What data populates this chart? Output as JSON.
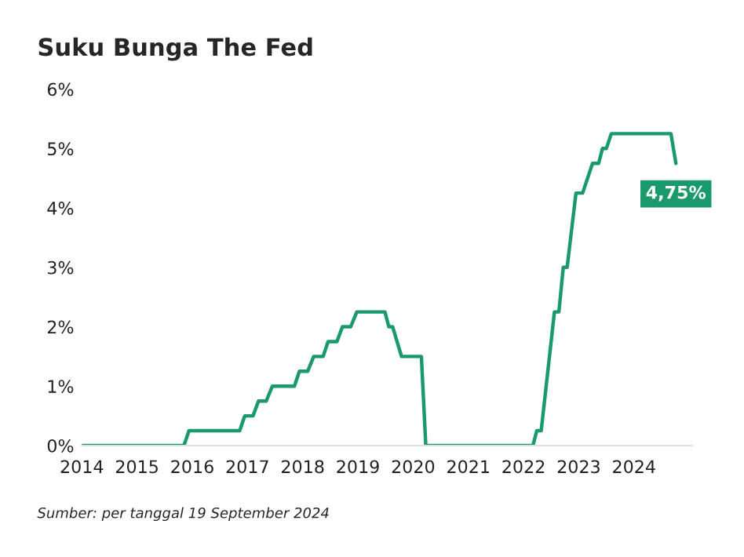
{
  "chart_data": {
    "type": "line",
    "title": "Suku Bunga The Fed",
    "x": [
      2014,
      2015.85,
      2015.94,
      2016.86,
      2016.95,
      2017.1,
      2017.2,
      2017.34,
      2017.45,
      2017.85,
      2017.94,
      2018.09,
      2018.2,
      2018.37,
      2018.46,
      2018.62,
      2018.72,
      2018.87,
      2018.98,
      2019.49,
      2019.56,
      2019.63,
      2019.79,
      2020.15,
      2020.23,
      2022.17,
      2022.24,
      2022.32,
      2022.56,
      2022.64,
      2022.72,
      2022.79,
      2022.95,
      2023.07,
      2023.25,
      2023.36,
      2023.43,
      2023.5,
      2023.59,
      2024.67,
      2024.76
    ],
    "series": [
      {
        "color": "#1a9a6c",
        "values": [
          0,
          0,
          0.25,
          0.25,
          0.5,
          0.5,
          0.75,
          0.75,
          1.0,
          1.0,
          1.25,
          1.25,
          1.5,
          1.5,
          1.75,
          1.75,
          2.0,
          2.0,
          2.25,
          2.25,
          2.0,
          2.0,
          1.5,
          1.5,
          0,
          0,
          0.25,
          0.25,
          2.25,
          2.25,
          3.0,
          3.0,
          4.25,
          4.25,
          4.75,
          4.75,
          5.0,
          5.0,
          5.25,
          5.25,
          4.75
        ]
      }
    ],
    "xlim": [
      2014,
      2025.05
    ],
    "xticks": [
      2014,
      2015,
      2016,
      2017,
      2018,
      2019,
      2020,
      2021,
      2022,
      2023,
      2024
    ],
    "ylim": [
      0,
      6
    ],
    "yticks": [
      {
        "value": 0,
        "label": "0%"
      },
      {
        "value": 1,
        "label": "1%"
      },
      {
        "value": 2,
        "label": "2%"
      },
      {
        "value": 3,
        "label": "3%"
      },
      {
        "value": 4,
        "label": "4%"
      },
      {
        "value": 5,
        "label": "5%"
      },
      {
        "value": 6,
        "label": "6%"
      }
    ],
    "grid": false,
    "legend": false,
    "marker": "none",
    "line_style": "solid",
    "annotations": [
      {
        "text": "4,75%",
        "x": 2024.76,
        "y": 4.75
      },
      "Sumber: per tanggal 19 September 2024"
    ]
  }
}
